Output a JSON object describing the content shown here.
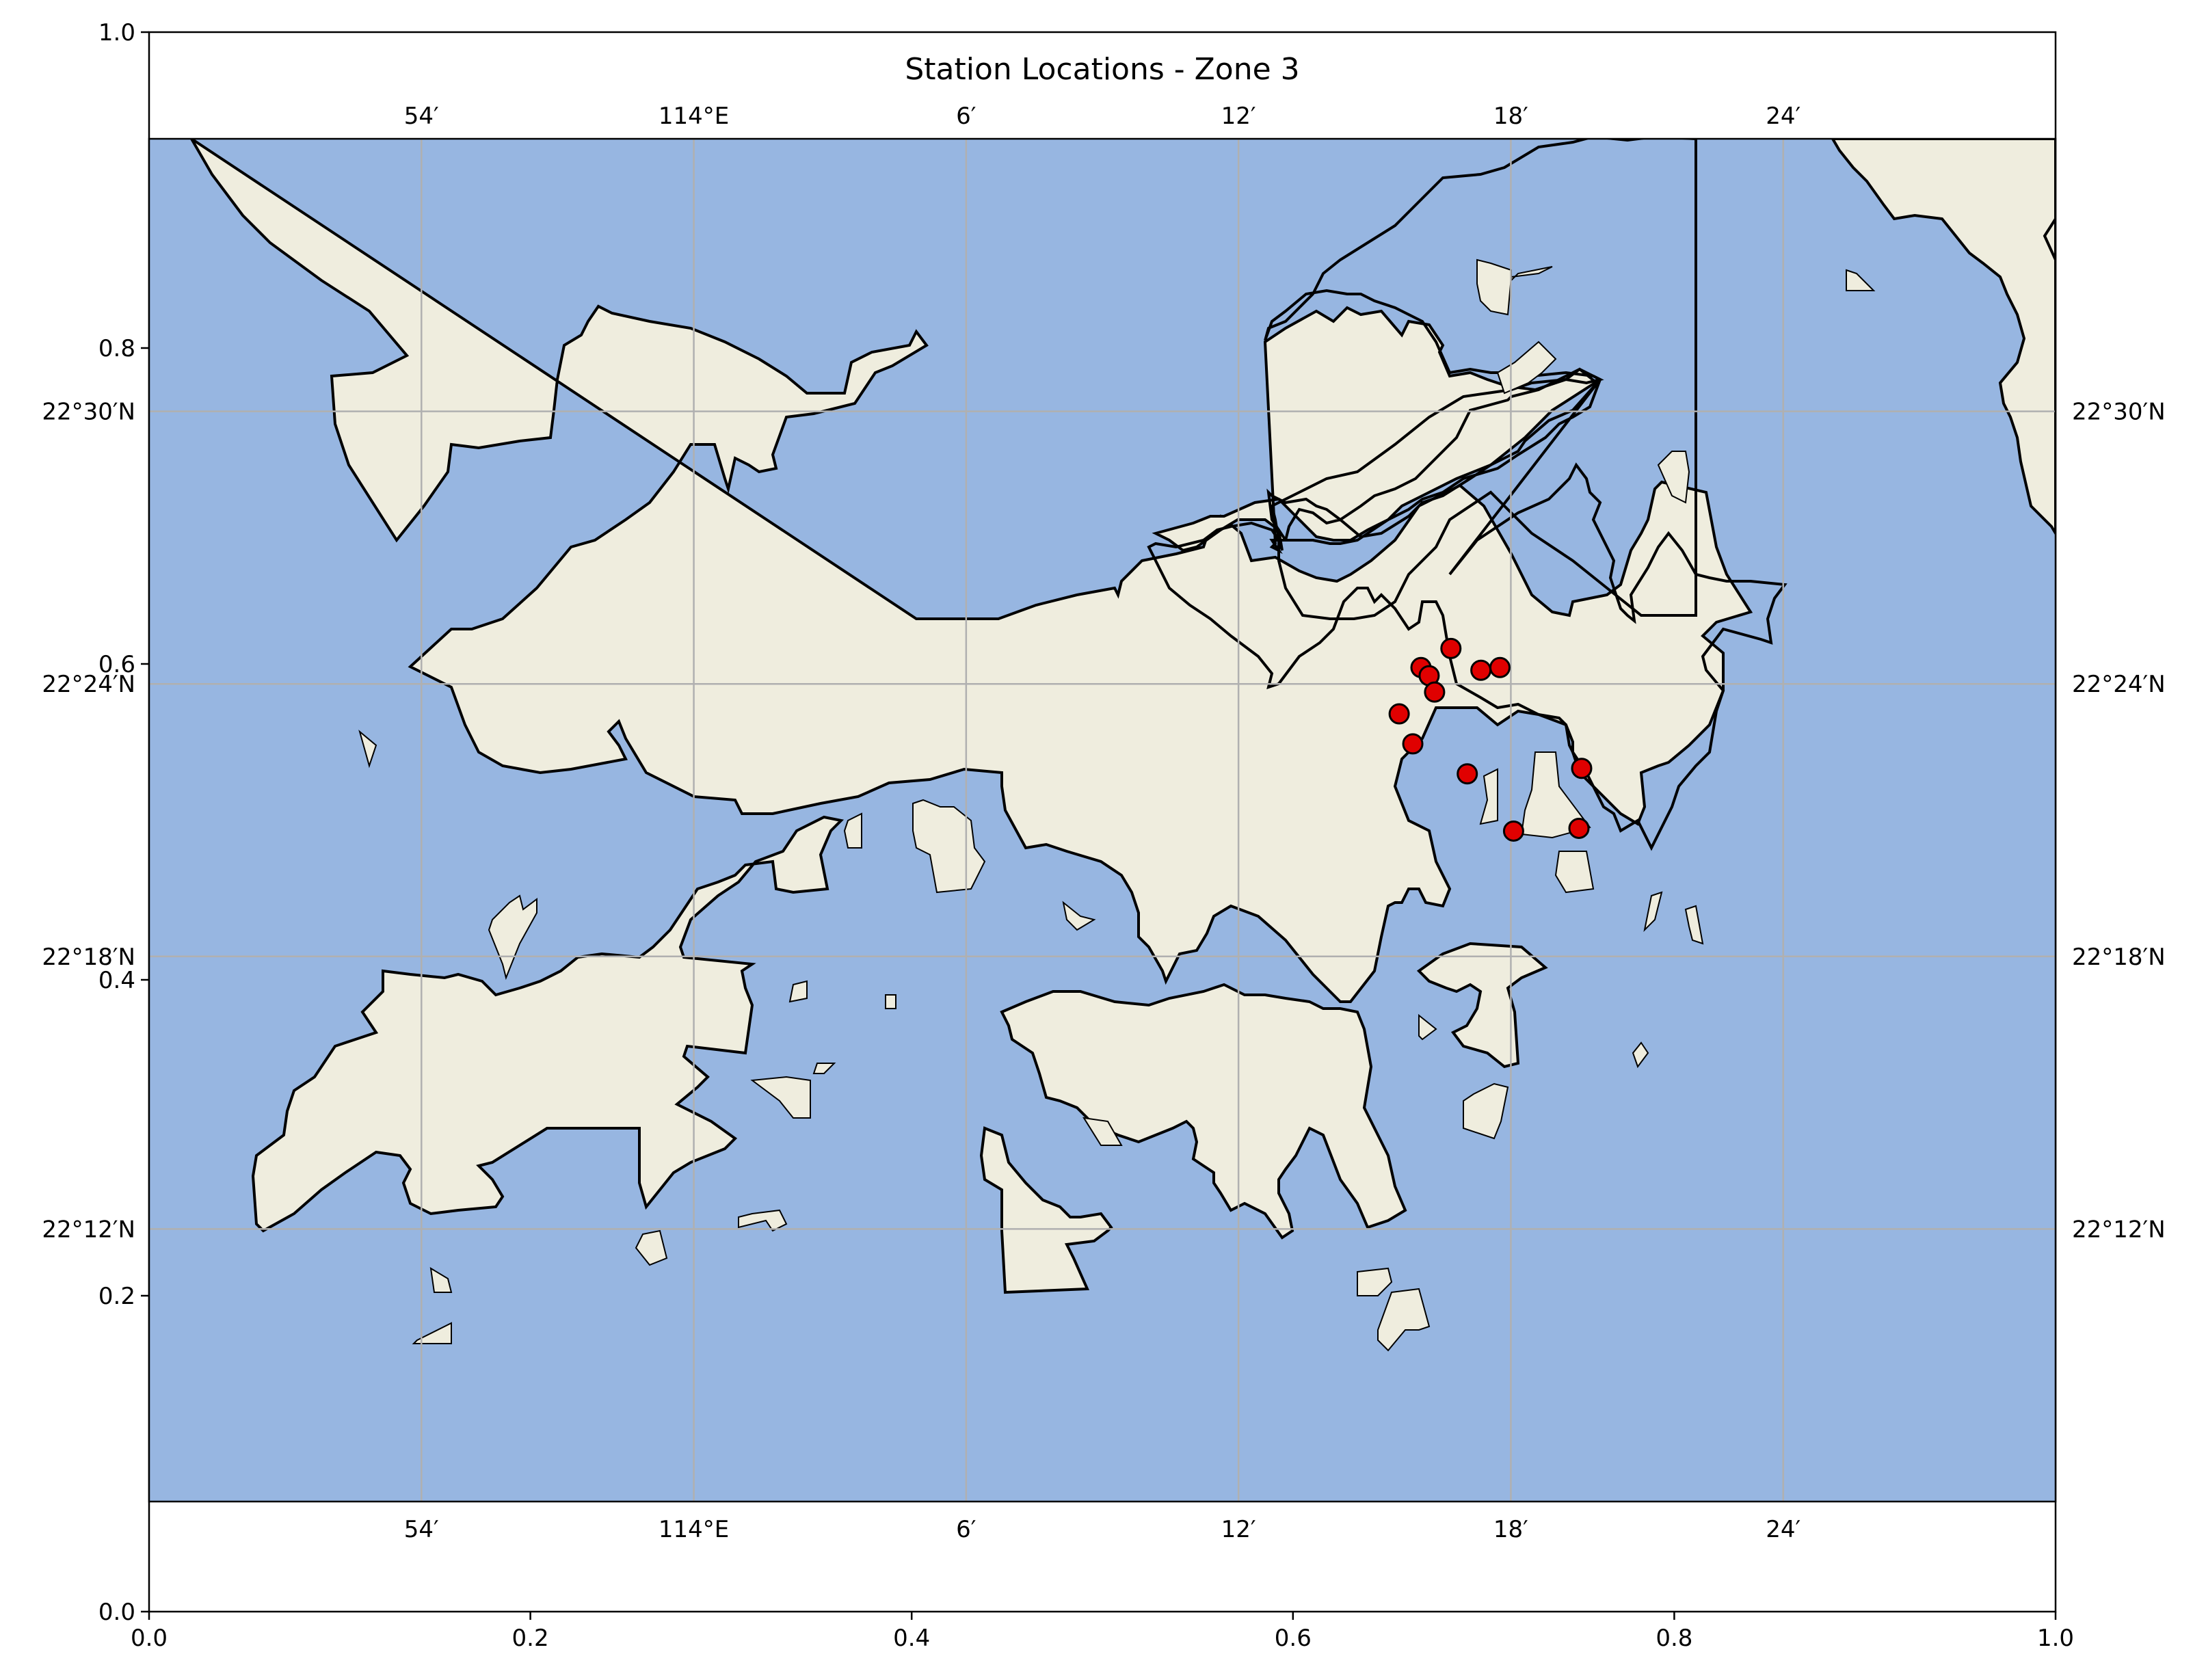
{
  "title": "Station Locations - Zone 3",
  "outer_axes": {
    "x_ticks": [
      "0.0",
      "0.2",
      "0.4",
      "0.6",
      "0.8",
      "1.0"
    ],
    "y_ticks": [
      "0.0",
      "0.2",
      "0.4",
      "0.6",
      "0.8",
      "1.0"
    ]
  },
  "map": {
    "lon_ticks": [
      {
        "lon": 113.9,
        "label": "54′"
      },
      {
        "lon": 114.0,
        "label": "114°E"
      },
      {
        "lon": 114.1,
        "label": "6′"
      },
      {
        "lon": 114.2,
        "label": "12′"
      },
      {
        "lon": 114.3,
        "label": "18′"
      },
      {
        "lon": 114.4,
        "label": "24′"
      }
    ],
    "lat_ticks": [
      {
        "lat": 22.2,
        "label": "22°12′N"
      },
      {
        "lat": 22.3,
        "label": "22°18′N"
      },
      {
        "lat": 22.4,
        "label": "22°24′N"
      },
      {
        "lat": 22.5,
        "label": "22°30′N"
      }
    ],
    "colors": {
      "ocean": "#97b6e1",
      "land": "#efedde",
      "station": "#e00000"
    },
    "features": [
      "coastline",
      "ocean",
      "land",
      "gridlines"
    ]
  },
  "chart_data": {
    "type": "scatter",
    "title": "Station Locations - Zone 3",
    "extent": {
      "lon": [
        113.8,
        114.5
      ],
      "lat": [
        22.1,
        22.6
      ]
    },
    "points": [
      {
        "lon": 114.278,
        "lat": 22.413
      },
      {
        "lon": 114.267,
        "lat": 22.406
      },
      {
        "lon": 114.27,
        "lat": 22.403
      },
      {
        "lon": 114.289,
        "lat": 22.405
      },
      {
        "lon": 114.296,
        "lat": 22.406
      },
      {
        "lon": 114.272,
        "lat": 22.397
      },
      {
        "lon": 114.259,
        "lat": 22.389
      },
      {
        "lon": 114.264,
        "lat": 22.378
      },
      {
        "lon": 114.284,
        "lat": 22.367
      },
      {
        "lon": 114.326,
        "lat": 22.369
      },
      {
        "lon": 114.301,
        "lat": 22.346
      },
      {
        "lon": 114.325,
        "lat": 22.347
      }
    ]
  }
}
